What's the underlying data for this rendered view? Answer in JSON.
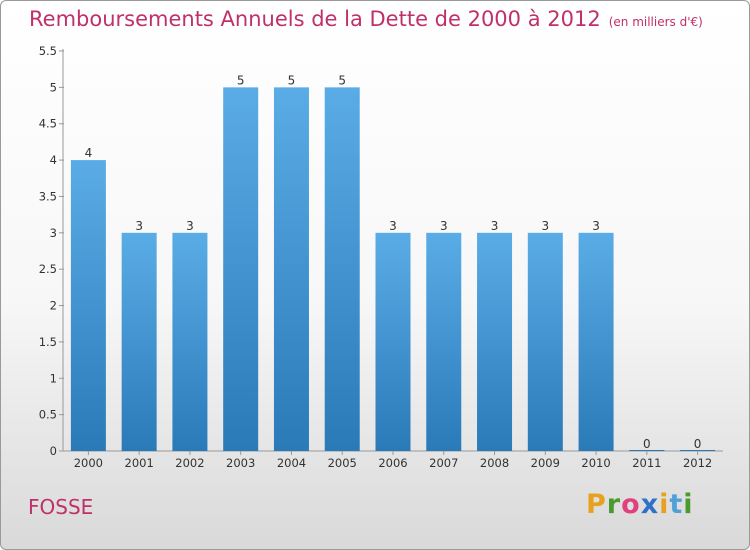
{
  "title": "Remboursements Annuels de la Dette de 2000 à 2012",
  "unit": "(en milliers d'€)",
  "commune": "FOSSE",
  "brand": "Proxiti",
  "colors": {
    "title": "#c0306a",
    "bar_light": "#5aace6",
    "bar_dark": "#2a7ab8",
    "logo_letters": [
      "#e8a020",
      "#4a9a30",
      "#e04080",
      "#3070c8",
      "#e8a020",
      "#50a0d8",
      "#4a9a30"
    ]
  },
  "chart_data": {
    "type": "bar",
    "categories": [
      "2000",
      "2001",
      "2002",
      "2003",
      "2004",
      "2005",
      "2006",
      "2007",
      "2008",
      "2009",
      "2010",
      "2011",
      "2012"
    ],
    "values": [
      4,
      3,
      3,
      5,
      5,
      5,
      3,
      3,
      3,
      3,
      3,
      0,
      0
    ],
    "data_labels": [
      "4",
      "3",
      "3",
      "5",
      "5",
      "5",
      "3",
      "3",
      "3",
      "3",
      "3",
      "0",
      "0"
    ],
    "ylim": [
      0,
      5.5
    ],
    "yticks": [
      {
        "value": 0,
        "label": "0"
      },
      {
        "value": 0.5,
        "label": "0.5"
      },
      {
        "value": 1,
        "label": "1"
      },
      {
        "value": 1.5,
        "label": "1.5"
      },
      {
        "value": 2,
        "label": "2"
      },
      {
        "value": 2.5,
        "label": "2.5"
      },
      {
        "value": 3,
        "label": "3"
      },
      {
        "value": 3.5,
        "label": "3.5"
      },
      {
        "value": 4,
        "label": "4"
      },
      {
        "value": 4.5,
        "label": "4.5"
      },
      {
        "value": 5,
        "label": "5"
      },
      {
        "value": 5.5,
        "label": "5.5"
      }
    ],
    "grid": false,
    "legend": "none"
  }
}
